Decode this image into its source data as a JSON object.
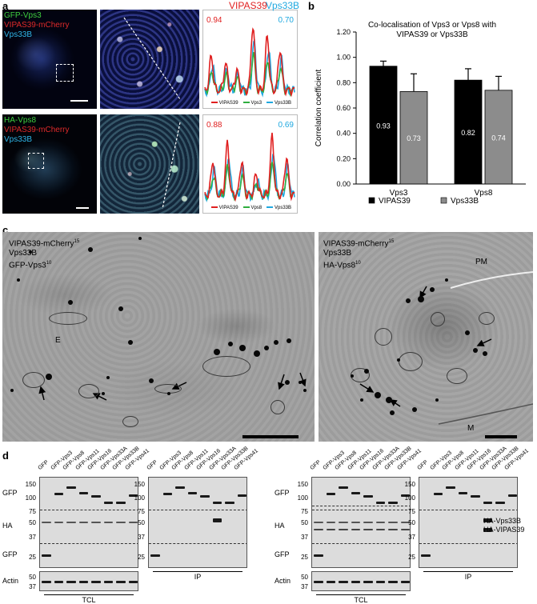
{
  "panel_labels": [
    "a",
    "b",
    "c",
    "d"
  ],
  "panel_a": {
    "row1": {
      "channels": [
        {
          "text": "GFP-Vps3",
          "color": "#3fd03f"
        },
        {
          "text": "VIPAS39-mCherry",
          "color": "#e02a2a"
        },
        {
          "text": "Vps33B",
          "color": "#2fb6e8"
        }
      ],
      "coef_left": "0.94",
      "coef_right": "0.70",
      "header_left": "VIPAS39",
      "header_right": "Vps33B",
      "legend": [
        "VIPAS39",
        "Vps3",
        "Vps33B"
      ]
    },
    "row2": {
      "channels": [
        {
          "text": "HA-Vps8",
          "color": "#3fd03f"
        },
        {
          "text": "VIPAS39-mCherry",
          "color": "#e02a2a"
        },
        {
          "text": "Vps33B",
          "color": "#2fb6e8"
        }
      ],
      "coef_left": "0.88",
      "coef_right": "0.69",
      "legend": [
        "VIPAS39",
        "Vps8",
        "Vps33B"
      ]
    },
    "line_colors": {
      "red": "#e02020",
      "green": "#2fae3f",
      "blue": "#1fa8e0"
    }
  },
  "chart_data": {
    "type": "bar",
    "title": "Co-localisation of Vps3 or Vps8 with VIPAS39 or Vps33B",
    "title_line1": "Co-localisation of Vps3 or Vps8 with",
    "title_line2": "VIPAS39 or Vps33B",
    "ylabel": "Correlation coefficient",
    "ylim": [
      0,
      1.2
    ],
    "yticks": [
      "0.00",
      "0.20",
      "0.40",
      "0.60",
      "0.80",
      "1.00",
      "1.20"
    ],
    "categories": [
      "Vps3",
      "Vps8"
    ],
    "series": [
      {
        "name": "VIPAS39",
        "values": [
          0.93,
          0.82
        ],
        "errors": [
          0.04,
          0.09
        ],
        "labels": [
          "0.93",
          "0.82"
        ],
        "color": "#000000"
      },
      {
        "name": "Vps33B",
        "values": [
          0.73,
          0.74
        ],
        "errors": [
          0.14,
          0.11
        ],
        "labels": [
          "0.73",
          "0.74"
        ],
        "color": "#8c8c8c"
      }
    ],
    "legend_position": "bottom"
  },
  "panel_c": {
    "left_labels": {
      "line1": "VIPAS39-mCherry",
      "sup1": "15",
      "line2": "Vps33B",
      "line3": "GFP-Vps3",
      "sup3": "10"
    },
    "right_labels": {
      "line1": "VIPAS39-mCherry",
      "sup1": "15",
      "line2": "Vps33B",
      "line3": "HA-Vps8",
      "sup3": "10"
    },
    "marker_E": "E",
    "marker_PM": "PM",
    "marker_M": "M"
  },
  "panel_d": {
    "lanes": [
      "GFP",
      "GFP-Vps3",
      "GFP-Vps8",
      "GFP-Vps11",
      "GFP-Vps16",
      "GFP-Vps33A",
      "GFP-Vps33B",
      "GFP-Vps41"
    ],
    "tcl_mw_top": [
      "150",
      "100",
      "75",
      "50",
      "37",
      "25"
    ],
    "actin_mw": [
      "50",
      "37"
    ],
    "ip_mw": [
      "150",
      "100",
      "75",
      "50",
      "37",
      "25"
    ],
    "row_labels": [
      "GFP",
      "HA",
      "GFP",
      "Actin"
    ],
    "captions": [
      "TCL",
      "IP",
      "TCL",
      "IP"
    ],
    "right_labels": [
      "HA-Vps33B",
      "HA-VIPAS39"
    ]
  }
}
